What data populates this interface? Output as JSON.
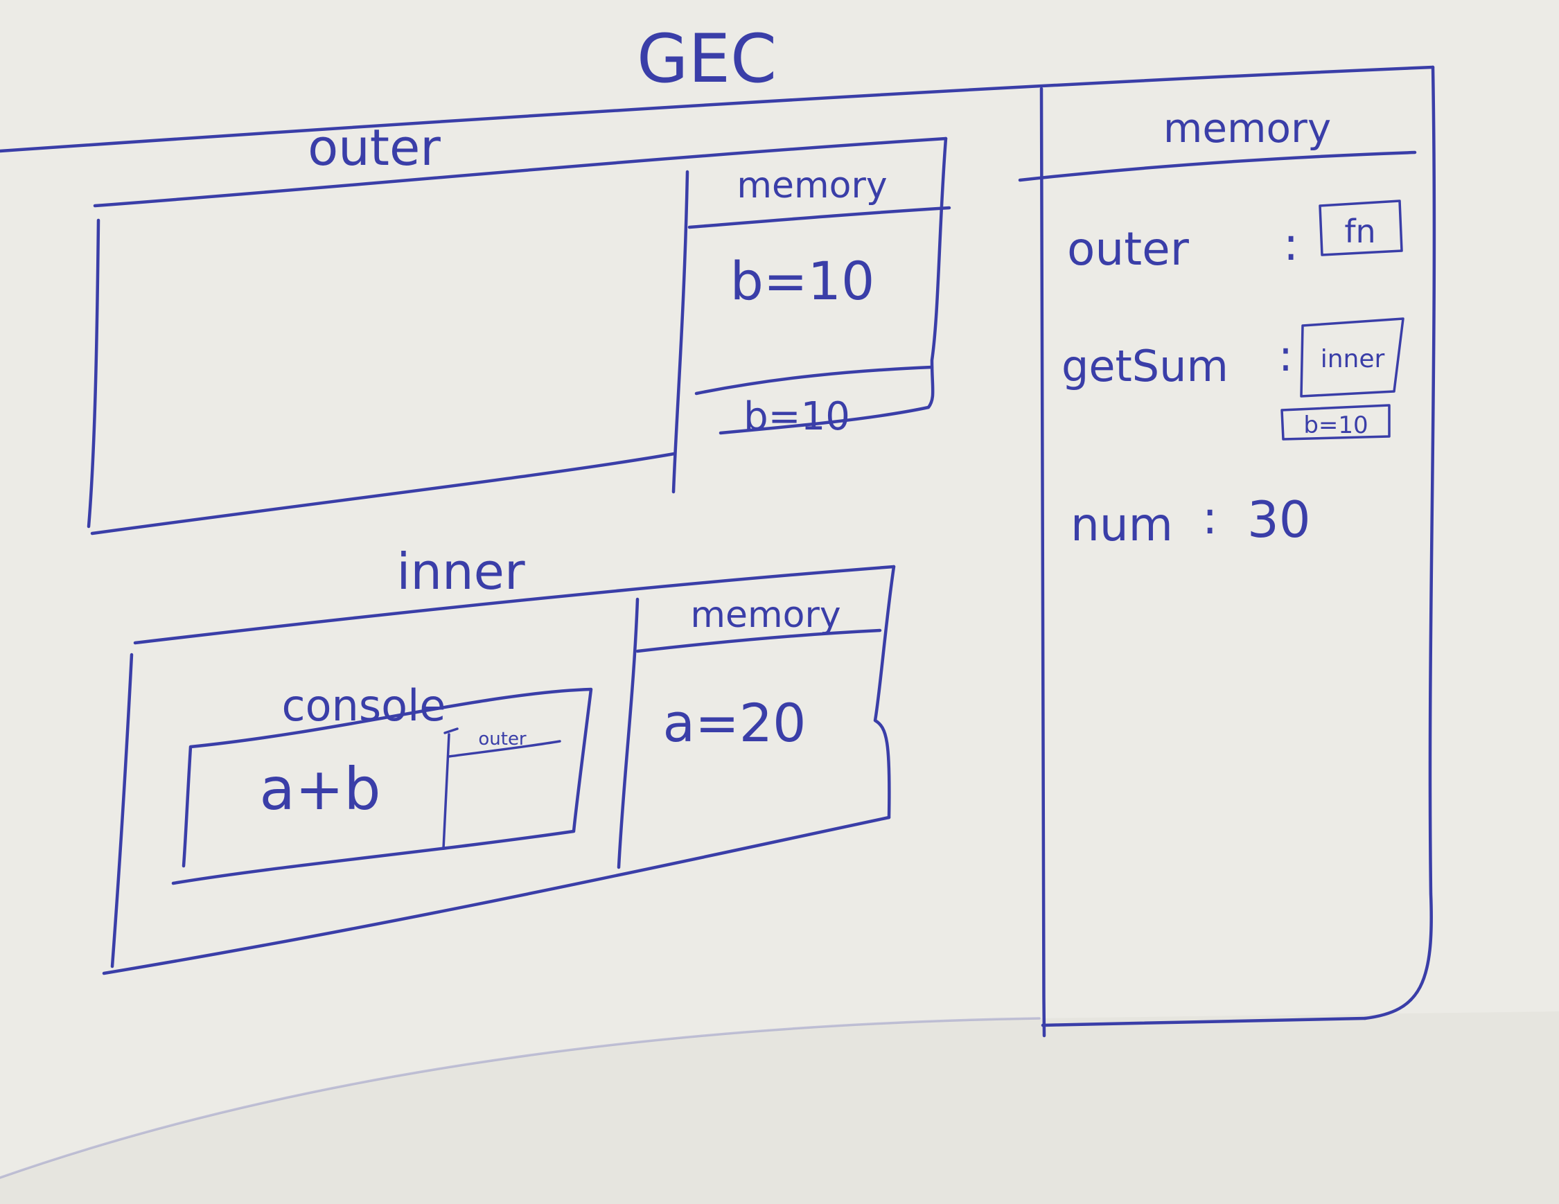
{
  "diagram": {
    "title": "GEC",
    "colors": {
      "ink": "#3a3ea8",
      "paper": "#ecebe6"
    },
    "outer": {
      "label": "outer",
      "memory_label": "memory",
      "memory_entries": [
        "b=10",
        "b=10"
      ]
    },
    "inner": {
      "label": "inner",
      "console_label": "console",
      "expression": "a+b",
      "mini_box_label": "outer",
      "memory_label": "memory",
      "memory_entries": [
        "a=20"
      ]
    },
    "global_memory": {
      "label": "memory",
      "entries": [
        {
          "key": "outer",
          "sep": ":",
          "value": "fn"
        },
        {
          "key": "getSum",
          "sep": ":",
          "value": "inner",
          "closure": "b=10"
        },
        {
          "key": "num",
          "sep": ":",
          "value": "30"
        }
      ]
    }
  }
}
